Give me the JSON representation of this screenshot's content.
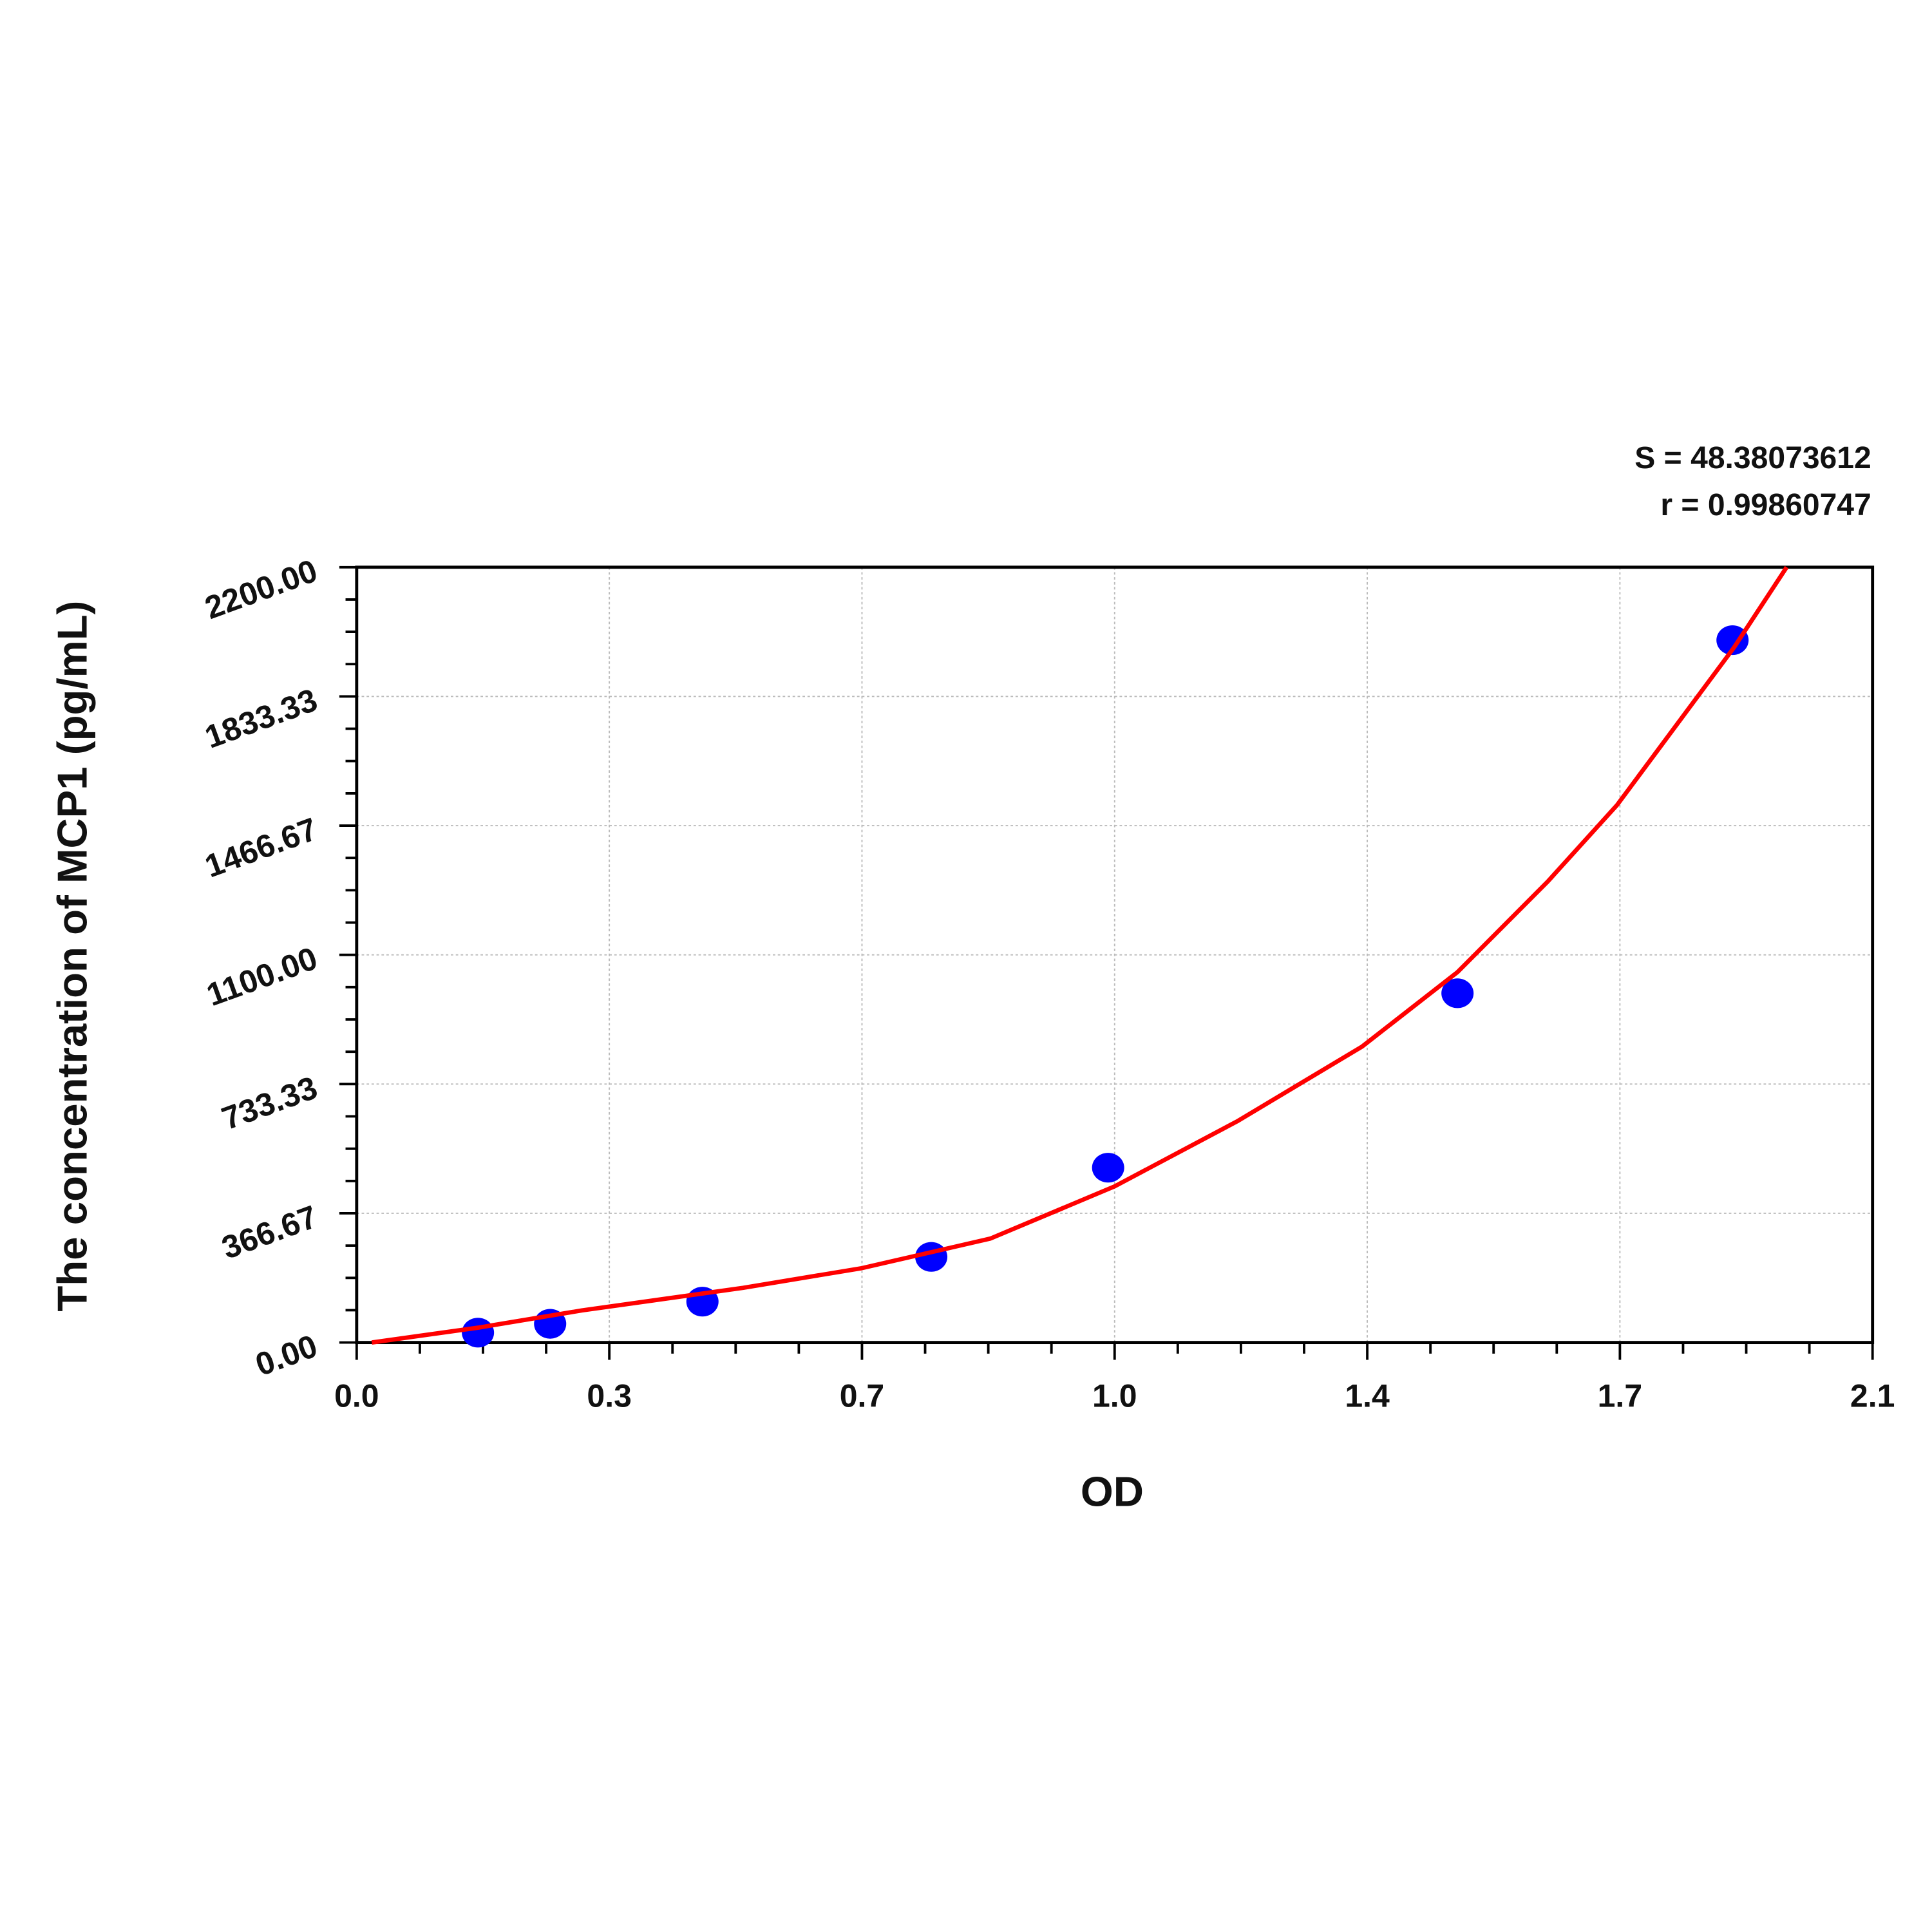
{
  "chart_data": {
    "type": "scatter",
    "x_label": "OD",
    "y_label": "The concentration of MCP1 (pg/mL)",
    "annotations": [
      "S = 48.38073612",
      "r = 0.99860747"
    ],
    "xlim": [
      0,
      2.1
    ],
    "ylim": [
      0,
      2200
    ],
    "xticks": [
      {
        "value": 0,
        "label": "0.0"
      },
      {
        "value": 0.35,
        "label": "0.3"
      },
      0.7,
      {
        "value": 1.05,
        "label": "1.0"
      },
      1.4,
      {
        "value": 1.75,
        "label": "1.7"
      },
      2.1
    ],
    "yticks": [
      {
        "value": 0,
        "label": "0.00"
      },
      366.67,
      733.33,
      {
        "value": 1100,
        "label": "1100.00"
      },
      1466.67,
      1833.33,
      {
        "value": 2200,
        "label": "2200.00"
      }
    ],
    "grid": true,
    "series": [
      {
        "type": "scatter",
        "color": "#0000ff",
        "x": [
          0.168,
          0.268,
          0.479,
          0.796,
          1.041,
          1.525,
          1.906
        ],
        "values": [
          28,
          53,
          116,
          243,
          496,
          991,
          1993
        ]
      },
      {
        "type": "line",
        "color": "#ff0000",
        "x": [
          0.021,
          0.168,
          0.312,
          0.535,
          0.7,
          0.878,
          1.05,
          1.221,
          1.393,
          1.525,
          1.65,
          1.746,
          1.908,
          1.981
        ],
        "values": [
          0,
          42,
          91,
          155,
          211,
          295,
          443,
          629,
          840,
          1051,
          1308,
          1525,
          1972,
          2200
        ]
      }
    ]
  }
}
